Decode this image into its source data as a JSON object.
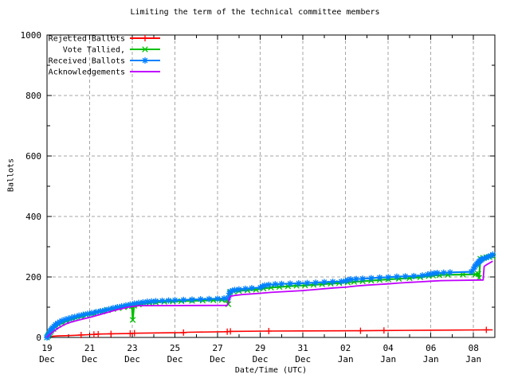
{
  "title": "Limiting the term of the technical committee members",
  "axes": {
    "x": {
      "label": "Date/Time (UTC)",
      "range_days": [
        0,
        21
      ],
      "ticks": [
        {
          "d": 0,
          "l1": "19",
          "l2": "Dec"
        },
        {
          "d": 2,
          "l1": "21",
          "l2": "Dec"
        },
        {
          "d": 4,
          "l1": "23",
          "l2": "Dec"
        },
        {
          "d": 6,
          "l1": "25",
          "l2": "Dec"
        },
        {
          "d": 8,
          "l1": "27",
          "l2": "Dec"
        },
        {
          "d": 10,
          "l1": "29",
          "l2": "Dec"
        },
        {
          "d": 12,
          "l1": "31",
          "l2": "Dec"
        },
        {
          "d": 14,
          "l1": "02",
          "l2": "Jan"
        },
        {
          "d": 16,
          "l1": "04",
          "l2": "Jan"
        },
        {
          "d": 18,
          "l1": "06",
          "l2": "Jan"
        },
        {
          "d": 20,
          "l1": "08",
          "l2": "Jan"
        }
      ],
      "minor_days": [
        1,
        3,
        5,
        7,
        9,
        11,
        13,
        15,
        17,
        19
      ]
    },
    "y": {
      "label": "Ballots",
      "range": [
        0,
        1000
      ],
      "ticks": [
        {
          "v": 0,
          "label": "0"
        },
        {
          "v": 200,
          "label": "200"
        },
        {
          "v": 400,
          "label": "400"
        },
        {
          "v": 600,
          "label": "600"
        },
        {
          "v": 800,
          "label": "800"
        },
        {
          "v": 1000,
          "label": "1000"
        }
      ],
      "minor": [
        100,
        300,
        500,
        700,
        900
      ]
    },
    "grid_color": "#a6a6a6",
    "axis_color": "#000000"
  },
  "chart_data": {
    "type": "line",
    "x_unit": "days since 19 Dec 00:00 UTC",
    "title": "Limiting the term of the technical committee members",
    "xlabel": "Date/Time (UTC)",
    "ylabel": "Ballots",
    "ylim": [
      0,
      1000
    ],
    "grid": "dashed",
    "legend_position": "top-left",
    "series": [
      {
        "id": "rejected",
        "label": "Rejected Ballots",
        "color": "#ff0000",
        "marker": "plus",
        "points": [
          [
            0,
            0
          ],
          [
            0.05,
            3
          ],
          [
            0.5,
            5
          ],
          [
            1.0,
            6
          ],
          [
            1.6,
            8
          ],
          [
            2.2,
            10
          ],
          [
            2.4,
            11
          ],
          [
            3.0,
            12
          ],
          [
            3.9,
            13
          ],
          [
            4.1,
            14
          ],
          [
            6.4,
            16
          ],
          [
            6.6,
            17
          ],
          [
            8.45,
            19
          ],
          [
            8.6,
            20
          ],
          [
            10.4,
            21
          ],
          [
            14.7,
            22
          ],
          [
            15.8,
            23
          ],
          [
            18.0,
            24
          ],
          [
            20.6,
            25
          ],
          [
            20.9,
            25
          ]
        ],
        "marker_points": [
          [
            0.05,
            3
          ],
          [
            1.6,
            8
          ],
          [
            2.2,
            10
          ],
          [
            2.4,
            11
          ],
          [
            3.0,
            12
          ],
          [
            3.9,
            13
          ],
          [
            4.1,
            14
          ],
          [
            6.4,
            16
          ],
          [
            8.45,
            19
          ],
          [
            8.6,
            20
          ],
          [
            10.4,
            21
          ],
          [
            14.7,
            22
          ],
          [
            15.8,
            23
          ],
          [
            20.6,
            25
          ]
        ]
      },
      {
        "id": "tallied",
        "label": "Vote Tallied,",
        "color": "#00c000",
        "marker": "cross",
        "points": [
          [
            0,
            0
          ],
          [
            0.05,
            5
          ],
          [
            0.1,
            11
          ],
          [
            0.15,
            17
          ],
          [
            0.2,
            22
          ],
          [
            0.3,
            28
          ],
          [
            0.4,
            35
          ],
          [
            0.55,
            42
          ],
          [
            0.7,
            48
          ],
          [
            0.9,
            54
          ],
          [
            1.1,
            59
          ],
          [
            1.35,
            64
          ],
          [
            1.6,
            69
          ],
          [
            1.85,
            74
          ],
          [
            2.1,
            78
          ],
          [
            2.35,
            82
          ],
          [
            2.6,
            86
          ],
          [
            2.85,
            90
          ],
          [
            3.1,
            94
          ],
          [
            3.35,
            97
          ],
          [
            3.6,
            100
          ],
          [
            3.85,
            103
          ],
          [
            3.98,
            104
          ],
          [
            4.02,
            58
          ],
          [
            4.08,
            105
          ],
          [
            4.3,
            109
          ],
          [
            4.55,
            112
          ],
          [
            4.8,
            114
          ],
          [
            5.1,
            116
          ],
          [
            5.5,
            118
          ],
          [
            5.9,
            119
          ],
          [
            6.3,
            120
          ],
          [
            6.8,
            121
          ],
          [
            7.3,
            122
          ],
          [
            7.8,
            123
          ],
          [
            8.2,
            124
          ],
          [
            8.45,
            125
          ],
          [
            8.5,
            110
          ],
          [
            8.58,
            150
          ],
          [
            8.75,
            152
          ],
          [
            9.0,
            154
          ],
          [
            9.4,
            156
          ],
          [
            9.8,
            158
          ],
          [
            10.15,
            162
          ],
          [
            10.5,
            165
          ],
          [
            10.9,
            167
          ],
          [
            11.3,
            169
          ],
          [
            11.7,
            171
          ],
          [
            12.1,
            172
          ],
          [
            12.5,
            174
          ],
          [
            12.9,
            176
          ],
          [
            13.3,
            178
          ],
          [
            13.7,
            180
          ],
          [
            14.1,
            182
          ],
          [
            14.4,
            184
          ],
          [
            14.8,
            186
          ],
          [
            15.2,
            188
          ],
          [
            15.6,
            190
          ],
          [
            16.0,
            192
          ],
          [
            16.5,
            194
          ],
          [
            17.0,
            196
          ],
          [
            17.5,
            199
          ],
          [
            17.9,
            203
          ],
          [
            18.1,
            205
          ],
          [
            18.4,
            206
          ],
          [
            18.8,
            207
          ],
          [
            19.5,
            208
          ],
          [
            20.1,
            209
          ],
          [
            20.22,
            210
          ],
          [
            20.26,
            197
          ],
          [
            20.32,
            260
          ],
          [
            20.45,
            263
          ],
          [
            20.6,
            265
          ],
          [
            20.75,
            266
          ],
          [
            20.9,
            268
          ]
        ],
        "marker_points": "all"
      },
      {
        "id": "received",
        "label": "Received Ballots",
        "color": "#0080ff",
        "marker": "asterisk",
        "points": [
          [
            0,
            0
          ],
          [
            0.03,
            4
          ],
          [
            0.06,
            9
          ],
          [
            0.1,
            14
          ],
          [
            0.14,
            19
          ],
          [
            0.18,
            24
          ],
          [
            0.22,
            28
          ],
          [
            0.27,
            32
          ],
          [
            0.33,
            37
          ],
          [
            0.4,
            42
          ],
          [
            0.5,
            47
          ],
          [
            0.6,
            51
          ],
          [
            0.7,
            55
          ],
          [
            0.85,
            59
          ],
          [
            1.0,
            62
          ],
          [
            1.15,
            65
          ],
          [
            1.3,
            68
          ],
          [
            1.5,
            72
          ],
          [
            1.7,
            75
          ],
          [
            1.9,
            78
          ],
          [
            2.1,
            81
          ],
          [
            2.3,
            84
          ],
          [
            2.5,
            87
          ],
          [
            2.7,
            90
          ],
          [
            2.9,
            93
          ],
          [
            3.1,
            97
          ],
          [
            3.3,
            100
          ],
          [
            3.5,
            103
          ],
          [
            3.7,
            106
          ],
          [
            3.9,
            109
          ],
          [
            4.1,
            112
          ],
          [
            4.3,
            114
          ],
          [
            4.5,
            116
          ],
          [
            4.7,
            118
          ],
          [
            4.9,
            119
          ],
          [
            5.1,
            120
          ],
          [
            5.4,
            121
          ],
          [
            5.7,
            122
          ],
          [
            6.0,
            123
          ],
          [
            6.4,
            124
          ],
          [
            6.8,
            125
          ],
          [
            7.2,
            126
          ],
          [
            7.6,
            127
          ],
          [
            8.0,
            128
          ],
          [
            8.3,
            129
          ],
          [
            8.5,
            131
          ],
          [
            8.55,
            146
          ],
          [
            8.6,
            152
          ],
          [
            8.7,
            155
          ],
          [
            8.8,
            157
          ],
          [
            9.0,
            159
          ],
          [
            9.3,
            161
          ],
          [
            9.6,
            163
          ],
          [
            10.0,
            165
          ],
          [
            10.1,
            169
          ],
          [
            10.2,
            172
          ],
          [
            10.4,
            174
          ],
          [
            10.7,
            176
          ],
          [
            11.0,
            177
          ],
          [
            11.4,
            178
          ],
          [
            11.8,
            179
          ],
          [
            12.2,
            180
          ],
          [
            12.6,
            181
          ],
          [
            13.0,
            183
          ],
          [
            13.4,
            184
          ],
          [
            13.8,
            185
          ],
          [
            14.0,
            187
          ],
          [
            14.1,
            190
          ],
          [
            14.25,
            192
          ],
          [
            14.5,
            193
          ],
          [
            14.8,
            194
          ],
          [
            15.2,
            196
          ],
          [
            15.6,
            198
          ],
          [
            16.0,
            199
          ],
          [
            16.4,
            201
          ],
          [
            16.8,
            202
          ],
          [
            17.2,
            203
          ],
          [
            17.6,
            205
          ],
          [
            17.85,
            208
          ],
          [
            18.0,
            210
          ],
          [
            18.15,
            212
          ],
          [
            18.3,
            213
          ],
          [
            18.6,
            214
          ],
          [
            18.9,
            215
          ],
          [
            19.9,
            217
          ],
          [
            20.0,
            226
          ],
          [
            20.05,
            233
          ],
          [
            20.1,
            238
          ],
          [
            20.15,
            242
          ],
          [
            20.2,
            246
          ],
          [
            20.25,
            250
          ],
          [
            20.3,
            253
          ],
          [
            20.35,
            256
          ],
          [
            20.4,
            259
          ],
          [
            20.5,
            262
          ],
          [
            20.6,
            264
          ],
          [
            20.7,
            267
          ],
          [
            20.8,
            270
          ],
          [
            20.9,
            274
          ]
        ],
        "marker_points": "all"
      },
      {
        "id": "acks",
        "label": "Acknowledgements",
        "color": "#c000ff",
        "marker": "none",
        "points": [
          [
            0,
            0
          ],
          [
            0.1,
            8
          ],
          [
            0.2,
            14
          ],
          [
            0.35,
            22
          ],
          [
            0.5,
            30
          ],
          [
            0.7,
            38
          ],
          [
            0.9,
            45
          ],
          [
            1.1,
            50
          ],
          [
            1.4,
            56
          ],
          [
            1.7,
            61
          ],
          [
            2.0,
            66
          ],
          [
            2.3,
            72
          ],
          [
            2.6,
            78
          ],
          [
            2.9,
            84
          ],
          [
            3.2,
            90
          ],
          [
            3.5,
            95
          ],
          [
            3.8,
            100
          ],
          [
            4.1,
            103
          ],
          [
            4.3,
            105
          ],
          [
            8.45,
            106
          ],
          [
            8.6,
            136
          ],
          [
            8.8,
            139
          ],
          [
            9.2,
            142
          ],
          [
            9.6,
            144
          ],
          [
            10.0,
            146
          ],
          [
            10.5,
            149
          ],
          [
            11.0,
            151
          ],
          [
            11.5,
            153
          ],
          [
            12.0,
            155
          ],
          [
            12.5,
            158
          ],
          [
            13.0,
            161
          ],
          [
            13.5,
            164
          ],
          [
            14.0,
            166
          ],
          [
            14.5,
            170
          ],
          [
            15.0,
            173
          ],
          [
            15.5,
            175
          ],
          [
            16.0,
            177
          ],
          [
            16.5,
            180
          ],
          [
            17.0,
            182
          ],
          [
            17.5,
            184
          ],
          [
            18.0,
            186
          ],
          [
            18.5,
            188
          ],
          [
            20.45,
            190
          ],
          [
            20.5,
            235
          ],
          [
            20.6,
            240
          ],
          [
            20.75,
            246
          ],
          [
            20.9,
            252
          ]
        ],
        "marker_points": []
      }
    ]
  },
  "legend": [
    {
      "series": "rejected",
      "label": "Rejected Ballots"
    },
    {
      "series": "tallied",
      "label": "Vote Tallied,"
    },
    {
      "series": "received",
      "label": "Received Ballots"
    },
    {
      "series": "acks",
      "label": "Acknowledgements"
    }
  ]
}
